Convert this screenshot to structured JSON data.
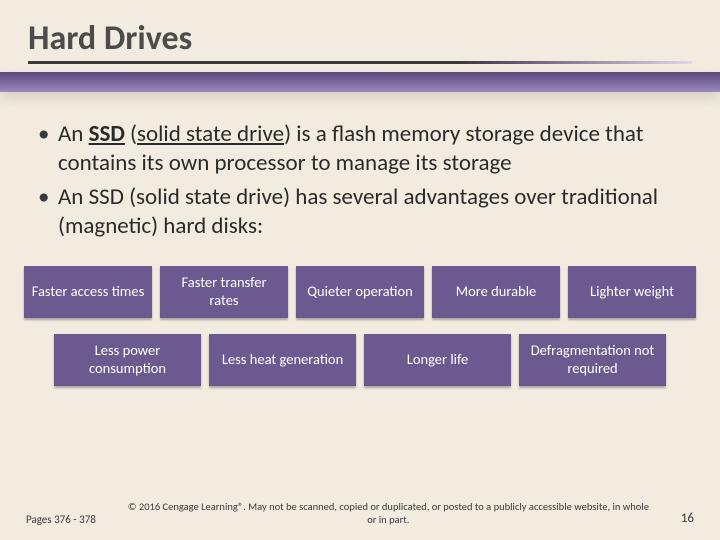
{
  "title": "Hard Drives",
  "bullets": [
    {
      "prefix": "An ",
      "term": "SSD",
      "term_paren": " (",
      "term_inner": "solid state drive",
      "term_close": ") ",
      "rest": "is a flash memory storage device that contains its own processor to manage its storage"
    },
    {
      "text": "An SSD (solid state drive) has several advantages over traditional (magnetic) hard disks:"
    }
  ],
  "boxes_row1": [
    "Faster access times",
    "Faster transfer rates",
    "Quieter operation",
    "More durable",
    "Lighter weight"
  ],
  "boxes_row2": [
    "Less power consumption",
    "Less heat generation",
    "Longer life",
    "Defragmentation not required"
  ],
  "colors": {
    "box_bg": "#6a5a8f",
    "box_text": "#ffffff",
    "page_bg": "#f2ece0"
  },
  "footer": {
    "pageref": "Pages 376 - 378",
    "copyright": "© 2016 Cengage Learning®. May not be scanned, copied or duplicated, or posted to a publicly accessible website, in whole or in part.",
    "pagenum": "16"
  }
}
